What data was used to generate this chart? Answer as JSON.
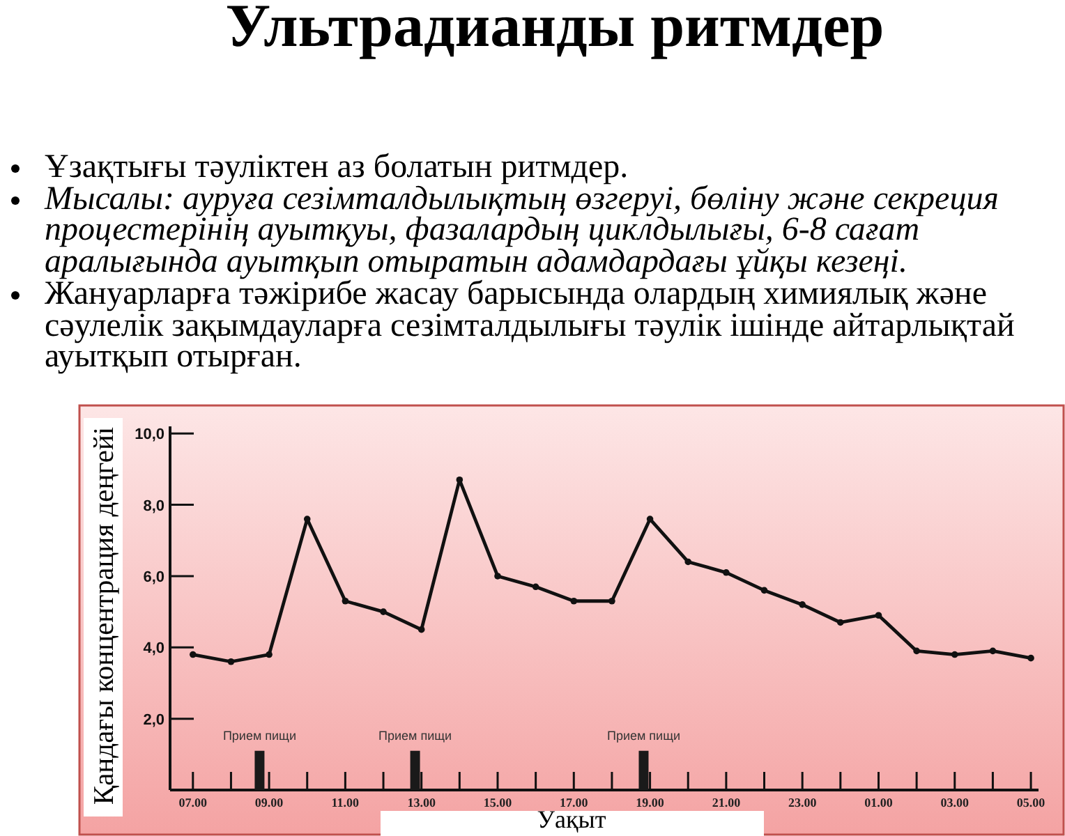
{
  "chart_data": {
    "type": "line",
    "title": "Ультрадианды ритмдер",
    "xlabel": "Уақыт",
    "ylabel": "Қандағы концентрация деңгейі",
    "annotations": [
      "Ұзақтығы тәуліктен аз болатын ритмдер.",
      "Мысалы: ауруға сезімталдылықтың өзгеруі, бөліну және секреция процестерінің ауытқуы, фазалардың циклдылығы, 6-8 сағат аралығында ауытқып отыратын адамдардағы ұйқы кезеңі.",
      "Жануарларға тәжірибе жасау барысында олардың химиялық және сәулелік зақымдауларға сезімталдылығы тәулік ішінде айтарлықтай ауытқып отырған.",
      {
        "text": "Прием пищи",
        "x": "2000-01-01T08:45",
        "y": 1.1
      },
      {
        "text": "Прием пищи",
        "x": "2000-01-01T12:50",
        "y": 1.1
      },
      {
        "text": "Прием пищи",
        "x": "2000-01-01T18:50",
        "y": 1.1
      }
    ],
    "x": [
      "2000-01-01T07:00",
      "2000-01-01T08:00",
      "2000-01-01T09:00",
      "2000-01-01T10:00",
      "2000-01-01T11:00",
      "2000-01-01T12:00",
      "2000-01-01T13:00",
      "2000-01-01T14:00",
      "2000-01-01T15:00",
      "2000-01-01T16:00",
      "2000-01-01T17:00",
      "2000-01-01T18:00",
      "2000-01-01T19:00",
      "2000-01-01T20:00",
      "2000-01-01T21:00",
      "2000-01-01T22:00",
      "2000-01-01T23:00",
      "2000-01-02T00:00",
      "2000-01-02T01:00",
      "2000-01-02T02:00",
      "2000-01-02T03:00",
      "2000-01-02T04:00",
      "2000-01-02T05:00"
    ],
    "series": [
      {
        "color": "#111111",
        "values": [
          3.8,
          3.6,
          3.8,
          7.6,
          5.3,
          5.0,
          4.5,
          8.7,
          6.0,
          5.7,
          5.3,
          5.3,
          7.6,
          6.4,
          6.1,
          5.6,
          5.2,
          4.7,
          4.9,
          3.9,
          3.8,
          3.9,
          3.7
        ]
      },
      {
        "type": "bar",
        "color": "#1a1a1a",
        "x": [
          "2000-01-01T08:45",
          "2000-01-01T12:50",
          "2000-01-01T18:50"
        ],
        "values": [
          1.1,
          1.1,
          1.1
        ]
      }
    ],
    "xlim": [
      "2000-01-01T06:24",
      "2000-01-02T05:12"
    ],
    "xticks": [
      {
        "value": "2000-01-01T07:00",
        "label": "07.00"
      },
      {
        "value": "2000-01-01T08:00",
        "label": null
      },
      {
        "value": "2000-01-01T09:00",
        "label": "09.00"
      },
      {
        "value": "2000-01-01T10:00",
        "label": null
      },
      {
        "value": "2000-01-01T11:00",
        "label": "11.00"
      },
      {
        "value": "2000-01-01T12:00",
        "label": null
      },
      {
        "value": "2000-01-01T13:00",
        "label": "13.00"
      },
      {
        "value": "2000-01-01T14:00",
        "label": null
      },
      {
        "value": "2000-01-01T15:00",
        "label": "15.00"
      },
      {
        "value": "2000-01-01T16:00",
        "label": null
      },
      {
        "value": "2000-01-01T17:00",
        "label": "17.00"
      },
      {
        "value": "2000-01-01T18:00",
        "label": null
      },
      {
        "value": "2000-01-01T19:00",
        "label": "19.00"
      },
      {
        "value": "2000-01-01T20:00",
        "label": null
      },
      {
        "value": "2000-01-01T21:00",
        "label": "21.00"
      },
      {
        "value": "2000-01-01T22:00",
        "label": null
      },
      {
        "value": "2000-01-01T23:00",
        "label": "23.00"
      },
      {
        "value": "2000-01-02T00:00",
        "label": null
      },
      {
        "value": "2000-01-02T01:00",
        "label": "01.00"
      },
      {
        "value": "2000-01-02T02:00",
        "label": null
      },
      {
        "value": "2000-01-02T03:00",
        "label": "03.00"
      },
      {
        "value": "2000-01-02T04:00",
        "label": null
      },
      {
        "value": "2000-01-02T05:00",
        "label": "05.00"
      }
    ],
    "ylim": [
      0,
      10.2
    ],
    "yticks": [
      {
        "value": 2,
        "label": "2,0"
      },
      {
        "value": 4,
        "label": "4,0"
      },
      {
        "value": 6,
        "label": "6,0"
      },
      {
        "value": 8,
        "label": "8,0"
      },
      {
        "value": 10,
        "label": "10,0"
      }
    ],
    "marker": "circle"
  }
}
